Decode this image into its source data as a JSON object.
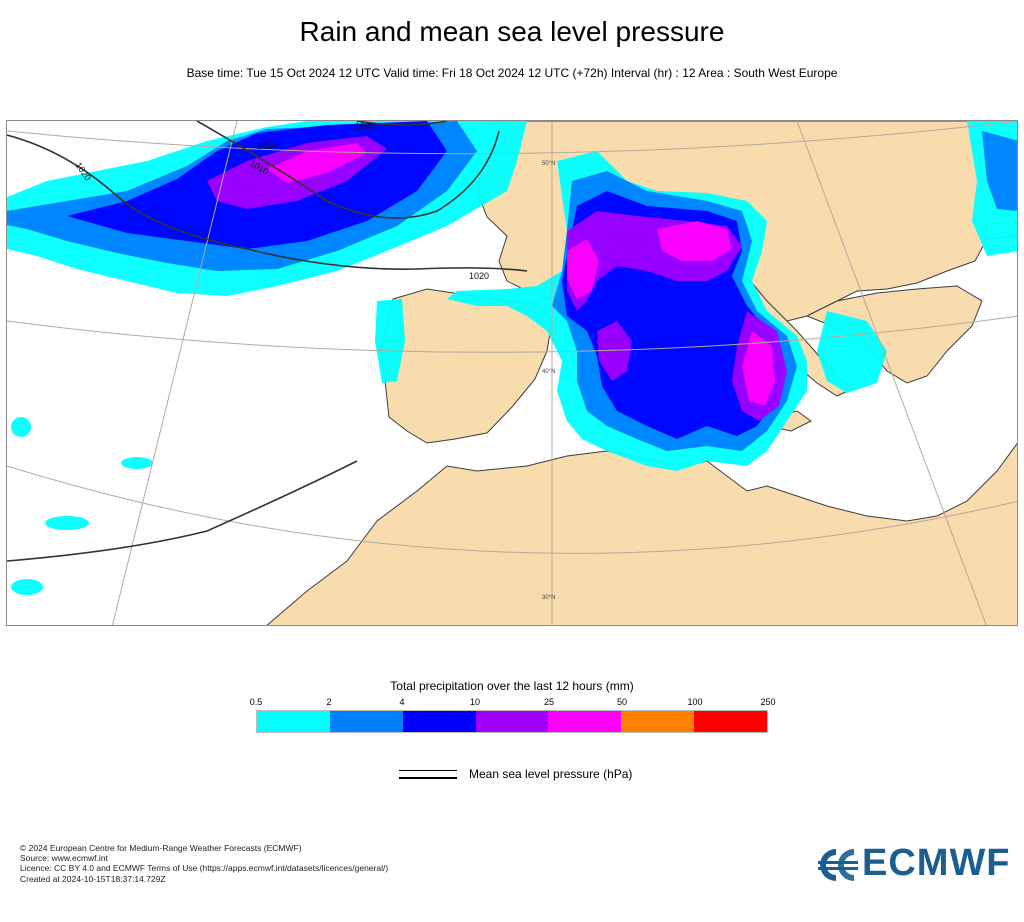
{
  "title": "Rain and mean sea level pressure",
  "subtitle": "Base time: Tue 15 Oct 2024 12 UTC Valid time: Fri 18 Oct 2024 12 UTC (+72h) Interval (hr) : 12 Area : South West Europe",
  "map": {
    "isobar_labels": [
      "1000",
      "1010",
      "1020",
      "1020",
      "1020"
    ],
    "latitude_labels": [
      "50°N",
      "40°N",
      "30°N"
    ],
    "colors": {
      "land": "#f8dcae",
      "sea": "#ffffff",
      "coast": "#3c3c3c",
      "border": "#b8a68a",
      "graticule": "#b5ab9c"
    }
  },
  "legend": {
    "title": "Total precipitation over the last 12 hours (mm)",
    "ticks": [
      "0.5",
      "2",
      "4",
      "10",
      "25",
      "50",
      "100",
      "250"
    ],
    "colors": [
      "#00ffff",
      "#0080ff",
      "#0000ff",
      "#a000ff",
      "#ff00ff",
      "#ff8000",
      "#ff0000"
    ],
    "pressure_label": "Mean sea level pressure (hPa)"
  },
  "footer": {
    "line1": "© 2024 European Centre for Medium-Range Weather Forecasts (ECMWF)",
    "line2": "Source: www.ecmwf.int",
    "line3": "Licence: CC BY 4.0 and ECMWF Terms of Use (https://apps.ecmwf.int/datasets/licences/general/)",
    "line4": "Created at 2024-10-15T18:37:14.729Z"
  },
  "logo": {
    "text": "ECMWF",
    "color": "#1a5f8f",
    "icon": "ecmwf-logo-icon"
  }
}
